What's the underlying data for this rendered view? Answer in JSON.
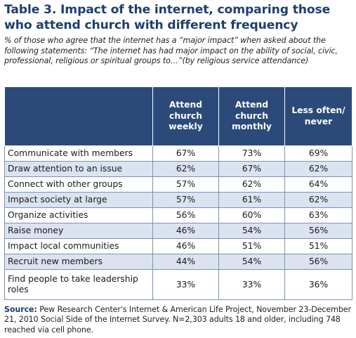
{
  "title": "Table 3. Impact of the internet, comparing those who attend church with different frequency",
  "subtitle": "% of those who agree that the internet has a “major impact” when asked about the following statements: “The internet has had major impact on the ability of social, civic, professional, religious or spiritual groups to…”(by religious service attendance)",
  "table": {
    "headers": [
      "",
      "Attend church weekly",
      "Attend church monthly",
      "Less often/ never"
    ],
    "rows": [
      {
        "label": "Communicate with members",
        "values": [
          "67%",
          "73%",
          "69%"
        ]
      },
      {
        "label": "Draw attention to an issue",
        "values": [
          "62%",
          "67%",
          "62%"
        ]
      },
      {
        "label": "Connect with other groups",
        "values": [
          "57%",
          "62%",
          "64%"
        ]
      },
      {
        "label": "Impact society at large",
        "values": [
          "57%",
          "61%",
          "62%"
        ]
      },
      {
        "label": "Organize activities",
        "values": [
          "56%",
          "60%",
          "63%"
        ]
      },
      {
        "label": "Raise money",
        "values": [
          "46%",
          "54%",
          "56%"
        ]
      },
      {
        "label": "Impact local communities",
        "values": [
          "46%",
          "51%",
          "51%"
        ]
      },
      {
        "label": "Recruit new members",
        "values": [
          "44%",
          "54%",
          "56%"
        ]
      },
      {
        "label": "Find people to take leadership roles",
        "values": [
          "33%",
          "33%",
          "36%"
        ]
      }
    ]
  },
  "source": {
    "label": "Source:",
    "text": "Pew Research Center's Internet & American Life Project, November 23-December 21, 2010 Social Side of the Internet Survey. N=2,303 adults 18 and older, including 748 reached via cell phone."
  },
  "colors": {
    "title": "#1f3f6b",
    "header_bg": "#2b4a79",
    "row_alt_bg": "#dbe3f0",
    "row_border": "#7d90b4"
  }
}
